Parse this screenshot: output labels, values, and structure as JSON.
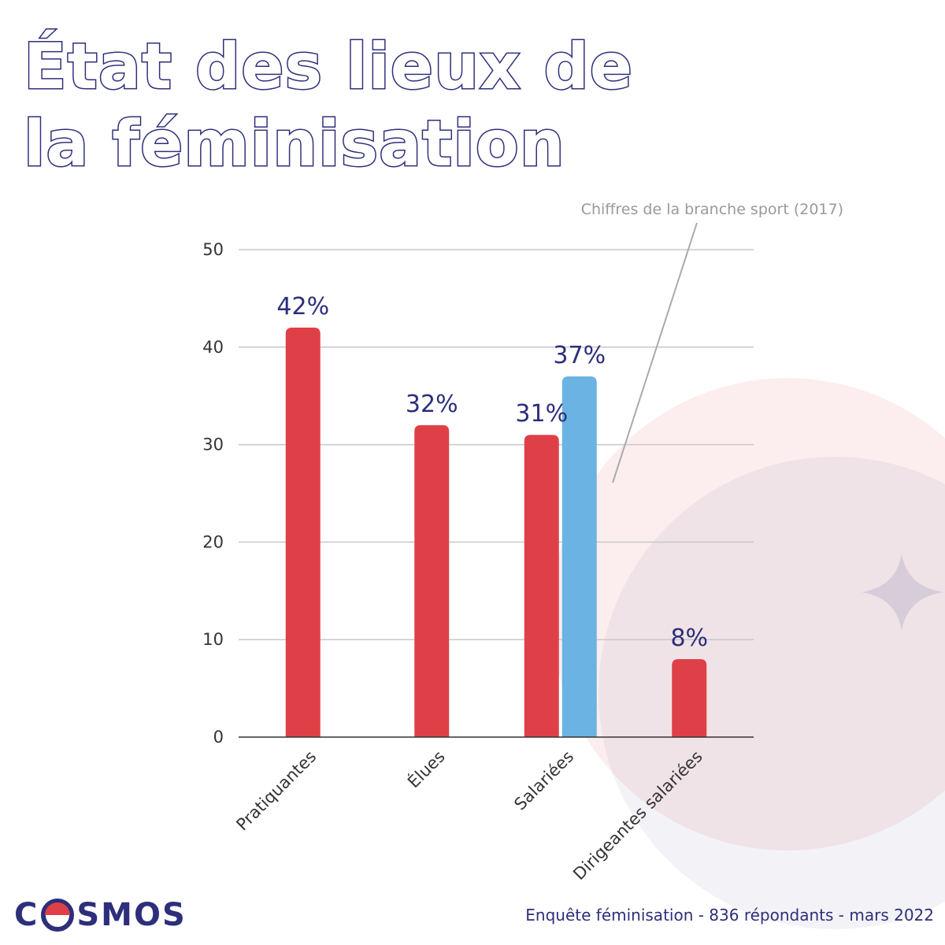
{
  "title": "État des lieux de la féminisation",
  "brand": {
    "logo_text_left": "C",
    "logo_text_right": "SMOS"
  },
  "source": "Enquête féminisation - 836 répondants - mars 2022",
  "annotation": "Chiffres de la branche sport (2017)",
  "colors": {
    "accent_red": "#df4047",
    "accent_blue": "#6ab3e3",
    "title_navy": "#2d2f7a"
  },
  "chart_data": {
    "type": "bar",
    "title": "État des lieux de la féminisation",
    "categories": [
      "Pratiquantes",
      "Élues",
      "Salariées",
      "Dirigeantes salariées"
    ],
    "series": [
      {
        "values": [
          42,
          32,
          31,
          8
        ],
        "labels": [
          "42%",
          "32%",
          "31%",
          "8%"
        ],
        "color": "#df4047"
      },
      {
        "name": "Chiffres de la branche sport (2017)",
        "values": [
          null,
          null,
          37,
          null
        ],
        "labels": [
          null,
          null,
          "37%",
          null
        ],
        "color": "#6ab3e3"
      }
    ],
    "ylim": [
      0,
      50
    ],
    "yticks": [
      0,
      10,
      20,
      30,
      40,
      50
    ],
    "grid": true,
    "xlabel": "",
    "ylabel": ""
  }
}
